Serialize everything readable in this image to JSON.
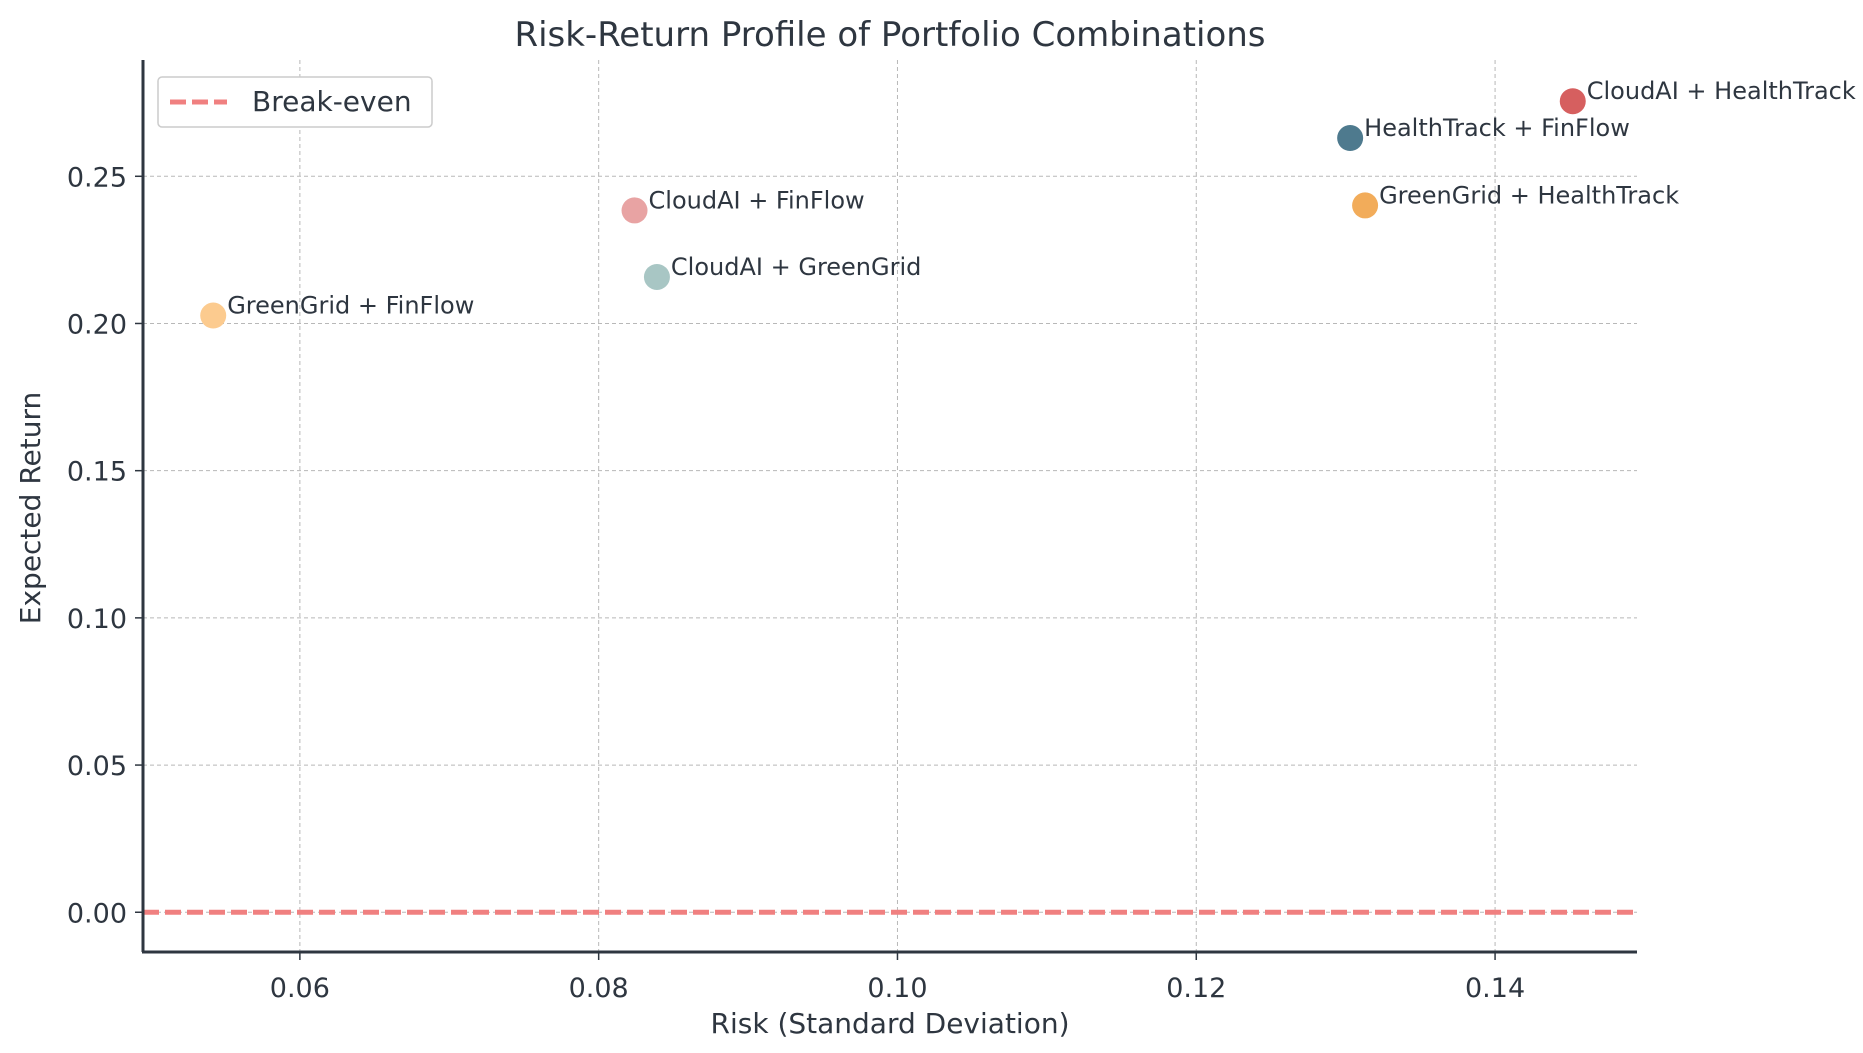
{
  "chart_data": {
    "type": "scatter",
    "title": "Risk-Return Profile of Portfolio Combinations",
    "xlabel": "Risk (Standard Deviation)",
    "ylabel": "Expected Return",
    "xlim": [
      0.0495,
      0.1495
    ],
    "ylim": [
      -0.0135,
      0.2895
    ],
    "x_ticks": [
      0.06,
      0.08,
      0.1,
      0.12,
      0.14
    ],
    "x_tick_labels": [
      "0.06",
      "0.08",
      "0.10",
      "0.12",
      "0.14"
    ],
    "y_ticks": [
      0.0,
      0.05,
      0.1,
      0.15,
      0.2,
      0.25
    ],
    "y_tick_labels": [
      "0.00",
      "0.05",
      "0.10",
      "0.15",
      "0.20",
      "0.25"
    ],
    "grid": true,
    "legend": {
      "placement": "top-left",
      "entries": [
        {
          "label": "Break-even",
          "color": "#f08080",
          "style": "dashed"
        }
      ]
    },
    "reference_line": {
      "name": "Break-even",
      "y": 0.0,
      "color": "#f08080",
      "style": "dashed"
    },
    "points": [
      {
        "label": "CloudAI + HealthTrack",
        "x": 0.1452,
        "y": 0.2755,
        "color": "#d65f5f"
      },
      {
        "label": "HealthTrack + FinFlow",
        "x": 0.1303,
        "y": 0.263,
        "color": "#4e7a8e"
      },
      {
        "label": "GreenGrid + HealthTrack",
        "x": 0.1313,
        "y": 0.2401,
        "color": "#f2ac5a"
      },
      {
        "label": "CloudAI + FinFlow",
        "x": 0.0824,
        "y": 0.2384,
        "color": "#e8a3a3"
      },
      {
        "label": "CloudAI + GreenGrid",
        "x": 0.0839,
        "y": 0.2158,
        "color": "#a8c6c4"
      },
      {
        "label": "GreenGrid + FinFlow",
        "x": 0.0542,
        "y": 0.2027,
        "color": "#fccb8f"
      }
    ]
  }
}
